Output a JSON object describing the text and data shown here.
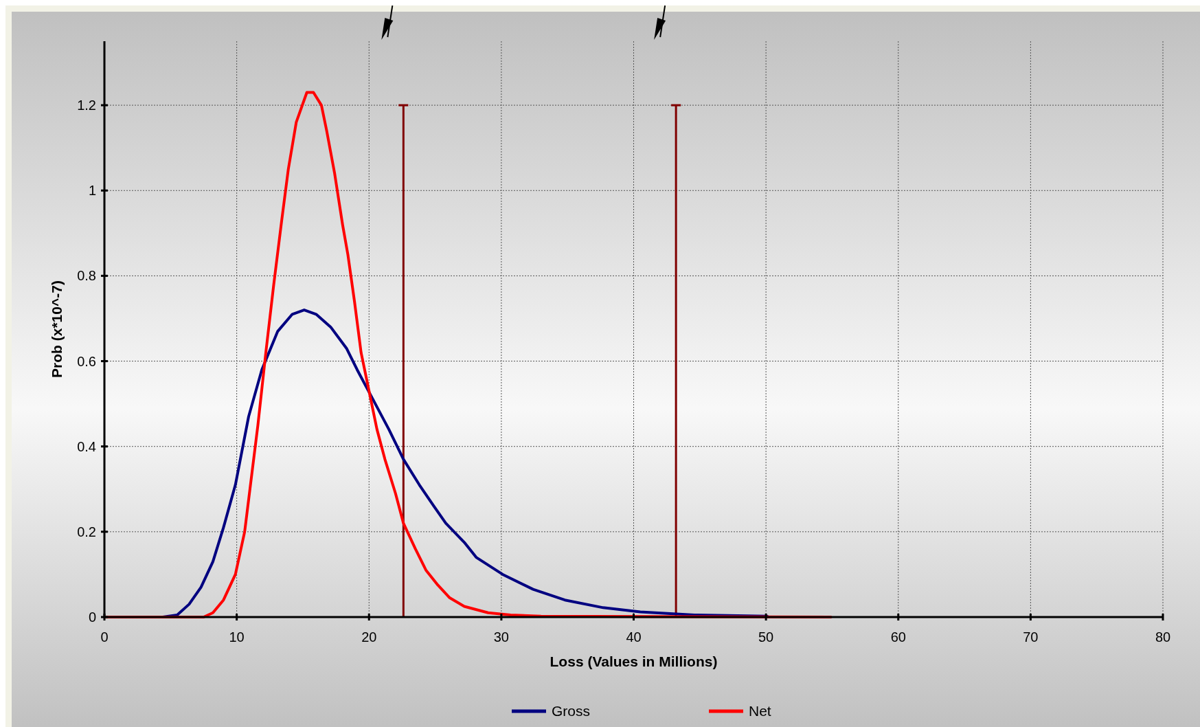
{
  "chart_data": {
    "type": "line",
    "xlabel": "Loss (Values in Millions)",
    "ylabel": "Prob (x*10^-7)",
    "xlim": [
      0,
      80
    ],
    "xticks": [
      0,
      10,
      20,
      30,
      40,
      50,
      60,
      70,
      80
    ],
    "ylim": [
      0,
      1.35
    ],
    "yticks": [
      0,
      0.2,
      0.4,
      {
        "value": 0.6,
        "label": "0.6"
      },
      0.8,
      1,
      1.2
    ],
    "grid": true,
    "legend": "bottom",
    "marker": "none",
    "line_style": "solid",
    "series": [
      {
        "name": "Gross",
        "color": "#000080",
        "x": [
          0,
          4.4,
          5.5,
          6.4,
          7.3,
          8.2,
          9.0,
          9.9,
          10.9,
          11.9,
          13.1,
          14.2,
          15.1,
          16.0,
          17.1,
          18.3,
          19.1,
          20.3,
          21.5,
          22.6,
          23.8,
          24.9,
          25.8,
          27.2,
          28.1,
          30.1,
          32.4,
          34.8,
          37.7,
          40.5,
          44.6,
          50.1
        ],
        "values": [
          0,
          0,
          0.005,
          0.03,
          0.07,
          0.13,
          0.21,
          0.31,
          0.47,
          0.58,
          0.67,
          0.71,
          0.72,
          0.71,
          0.68,
          0.63,
          0.58,
          0.51,
          0.44,
          0.37,
          0.31,
          0.26,
          0.22,
          0.175,
          0.14,
          0.1,
          0.065,
          0.04,
          0.022,
          0.012,
          0.005,
          0.002
        ]
      },
      {
        "name": "Net",
        "color": "#ff0000",
        "x": [
          0,
          7.5,
          8.2,
          9.0,
          9.9,
          10.6,
          11.0,
          11.6,
          12.2,
          12.8,
          13.4,
          13.9,
          14.5,
          15.3,
          15.8,
          16.4,
          16.8,
          17.4,
          18.0,
          18.4,
          18.9,
          19.4,
          20.0,
          20.6,
          21.2,
          22.0,
          22.6,
          23.5,
          24.3,
          25.2,
          26.1,
          27.2,
          29.0,
          30.7,
          33,
          54.9
        ],
        "values": [
          0,
          0,
          0.01,
          0.04,
          0.1,
          0.2,
          0.3,
          0.45,
          0.62,
          0.78,
          0.93,
          1.05,
          1.16,
          1.23,
          1.23,
          1.2,
          1.14,
          1.04,
          0.92,
          0.85,
          0.74,
          0.62,
          0.53,
          0.44,
          0.37,
          0.29,
          0.22,
          0.16,
          0.11,
          0.075,
          0.045,
          0.025,
          0.01,
          0.005,
          0.002,
          0
        ]
      }
    ],
    "ref_lines": [
      {
        "axis": "x",
        "value": 22.6,
        "color": "#800000"
      },
      {
        "axis": "x",
        "value": 43.2,
        "color": "#800000"
      }
    ]
  }
}
